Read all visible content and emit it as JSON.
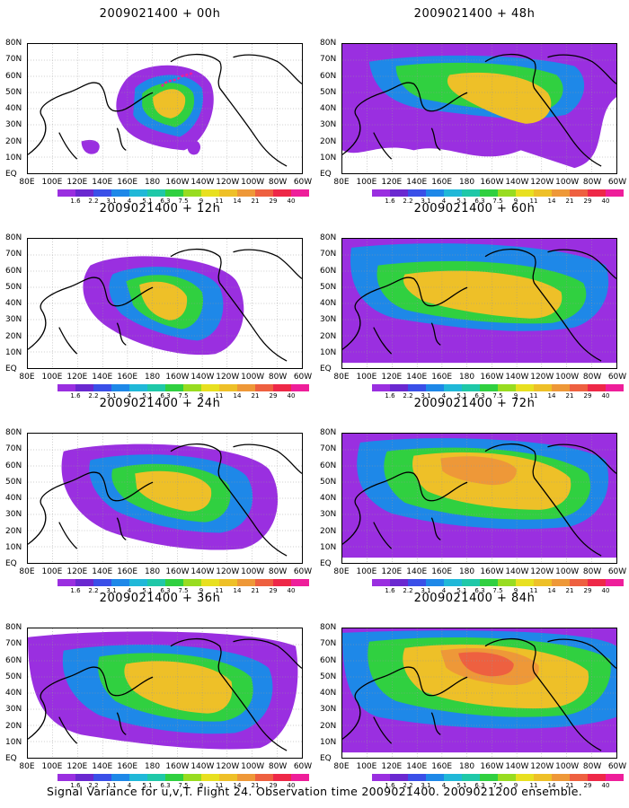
{
  "panels": [
    {
      "title": "2009021400 + 00h"
    },
    {
      "title": "2009021400 + 48h"
    },
    {
      "title": "2009021400 + 12h"
    },
    {
      "title": "2009021400 + 60h"
    },
    {
      "title": "2009021400 + 24h"
    },
    {
      "title": "2009021400 + 72h"
    },
    {
      "title": "2009021400 + 36h"
    },
    {
      "title": "2009021400 + 84h"
    }
  ],
  "axes": {
    "lat_labels": [
      "80N",
      "70N",
      "60N",
      "50N",
      "40N",
      "30N",
      "20N",
      "10N",
      "EQ"
    ],
    "lon_labels": [
      "80E",
      "100E",
      "120E",
      "140E",
      "160E",
      "180",
      "160W",
      "140W",
      "120W",
      "100W",
      "80W",
      "60W"
    ]
  },
  "colorbar": {
    "labels": [
      "1.6",
      "2.2",
      "3.1",
      "4",
      "5.1",
      "6.3",
      "7.5",
      "9",
      "11",
      "14",
      "21",
      "29",
      "40"
    ],
    "colors": [
      "#9a2fe0",
      "#6a28d0",
      "#3a4fe8",
      "#1e88e8",
      "#20b8d8",
      "#1fc8a8",
      "#30d040",
      "#98dc20",
      "#e8e020",
      "#eec028",
      "#ee9838",
      "#ee6040",
      "#ee2848",
      "#ee1e9a"
    ]
  },
  "caption": "Signal Variance for u,v,T. Flight 24. Observation time 2009021400. 2009021200 ensemble."
}
